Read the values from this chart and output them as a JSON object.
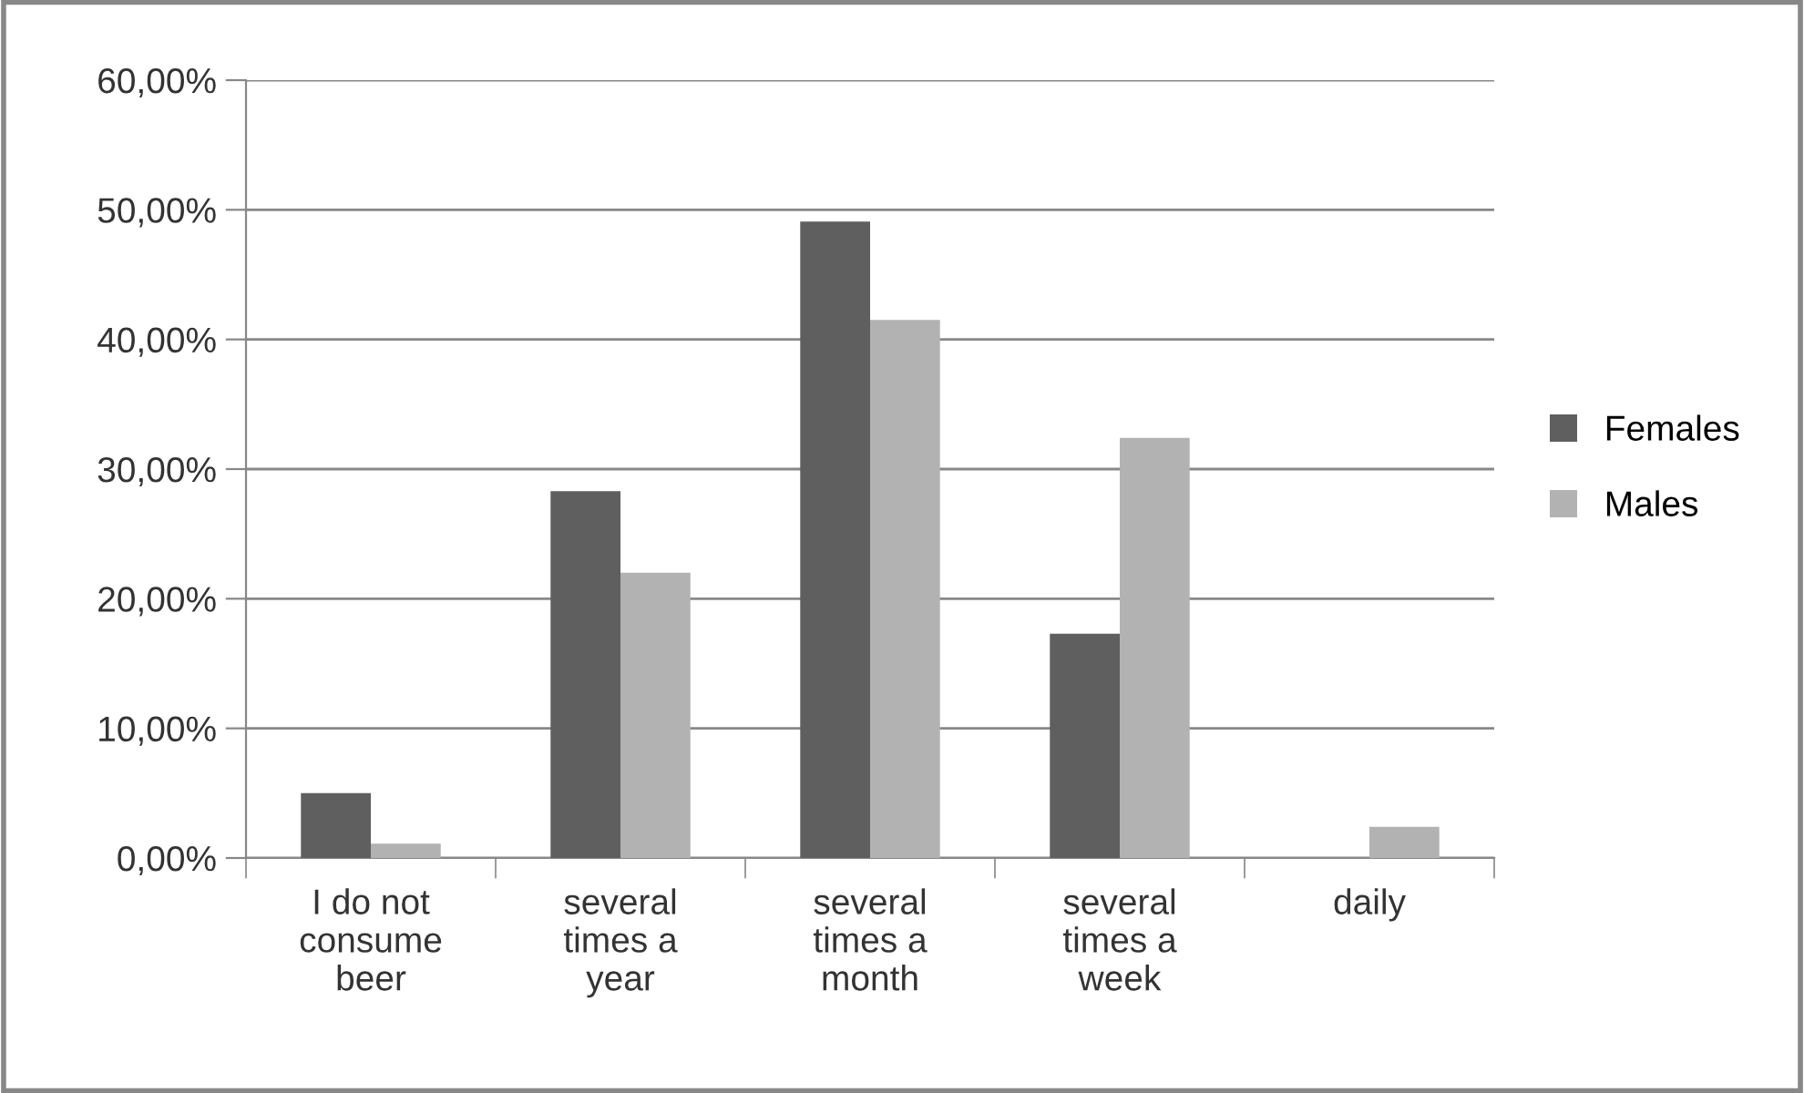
{
  "chart_data": {
    "type": "bar",
    "categories": [
      "I do not\nconsume\nbeer",
      "several\ntimes a\nyear",
      "several\ntimes a\nmonth",
      "several\ntimes a\nweek",
      "daily"
    ],
    "series": [
      {
        "name": "Females",
        "color": "#5f5f5f",
        "values": [
          5.0,
          28.3,
          49.1,
          17.3,
          0
        ]
      },
      {
        "name": "Males",
        "color": "#b2b2b2",
        "values": [
          1.1,
          22.0,
          41.5,
          32.4,
          2.4
        ]
      }
    ],
    "ylim": [
      0,
      60
    ],
    "yticks": [
      {
        "value": 0,
        "label": "0,00%"
      },
      {
        "value": 10,
        "label": "10,00%"
      },
      {
        "value": 20,
        "label": "20,00%"
      },
      {
        "value": 30,
        "label": "30,00%"
      },
      {
        "value": 40,
        "label": "40,00%"
      },
      {
        "value": 50,
        "label": "50,00%"
      },
      {
        "value": 60,
        "label": "60,00%"
      }
    ],
    "grid": "y",
    "legend": "right"
  }
}
